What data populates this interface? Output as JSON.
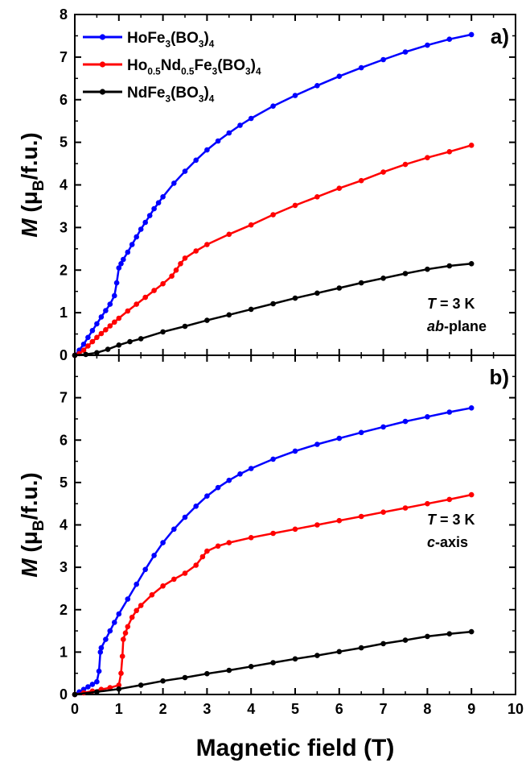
{
  "chart_data": [
    {
      "type": "scatter",
      "panel_label": "a)",
      "title": "",
      "xlabel": "Magnetic field (T)",
      "ylabel": "M (μB/f.u.)",
      "xlim": [
        0,
        10
      ],
      "ylim": [
        0,
        8
      ],
      "xticks": [
        0,
        1,
        2,
        3,
        4,
        5,
        6,
        7,
        8,
        9,
        10
      ],
      "yticks": [
        0,
        1,
        2,
        3,
        4,
        5,
        6,
        7,
        8
      ],
      "legend_position": "top-left",
      "annotation": {
        "T_label": "T",
        "T_value": " = 3 K",
        "orient_italic": "ab",
        "orient_rest": "-plane"
      },
      "series": [
        {
          "name": "HoFe3(BO3)4",
          "color": "#0000ff",
          "points": [
            [
              0,
              0
            ],
            [
              0.1,
              0.12
            ],
            [
              0.2,
              0.26
            ],
            [
              0.3,
              0.42
            ],
            [
              0.4,
              0.58
            ],
            [
              0.5,
              0.74
            ],
            [
              0.6,
              0.9
            ],
            [
              0.7,
              1.05
            ],
            [
              0.8,
              1.2
            ],
            [
              0.9,
              1.4
            ],
            [
              0.95,
              1.7
            ],
            [
              1.0,
              2.05
            ],
            [
              1.05,
              2.15
            ],
            [
              1.1,
              2.25
            ],
            [
              1.2,
              2.42
            ],
            [
              1.3,
              2.6
            ],
            [
              1.4,
              2.78
            ],
            [
              1.5,
              2.96
            ],
            [
              1.6,
              3.12
            ],
            [
              1.7,
              3.28
            ],
            [
              1.8,
              3.44
            ],
            [
              1.9,
              3.58
            ],
            [
              2.0,
              3.72
            ],
            [
              2.25,
              4.04
            ],
            [
              2.5,
              4.32
            ],
            [
              2.75,
              4.58
            ],
            [
              3.0,
              4.82
            ],
            [
              3.25,
              5.03
            ],
            [
              3.5,
              5.22
            ],
            [
              3.75,
              5.4
            ],
            [
              4.0,
              5.56
            ],
            [
              4.5,
              5.85
            ],
            [
              5.0,
              6.1
            ],
            [
              5.5,
              6.33
            ],
            [
              6.0,
              6.55
            ],
            [
              6.5,
              6.75
            ],
            [
              7.0,
              6.94
            ],
            [
              7.5,
              7.12
            ],
            [
              8.0,
              7.28
            ],
            [
              8.5,
              7.42
            ],
            [
              9.0,
              7.53
            ]
          ]
        },
        {
          "name": "Ho0.5Nd0.5Fe3(BO3)4",
          "color": "#ff0000",
          "points": [
            [
              0,
              0
            ],
            [
              0.1,
              0.04
            ],
            [
              0.2,
              0.12
            ],
            [
              0.3,
              0.22
            ],
            [
              0.4,
              0.32
            ],
            [
              0.5,
              0.42
            ],
            [
              0.6,
              0.51
            ],
            [
              0.7,
              0.6
            ],
            [
              0.8,
              0.69
            ],
            [
              0.9,
              0.78
            ],
            [
              1.0,
              0.87
            ],
            [
              1.2,
              1.04
            ],
            [
              1.4,
              1.2
            ],
            [
              1.6,
              1.36
            ],
            [
              1.8,
              1.52
            ],
            [
              2.0,
              1.68
            ],
            [
              2.2,
              1.86
            ],
            [
              2.3,
              2.0
            ],
            [
              2.4,
              2.15
            ],
            [
              2.5,
              2.28
            ],
            [
              2.75,
              2.45
            ],
            [
              3.0,
              2.6
            ],
            [
              3.5,
              2.84
            ],
            [
              4.0,
              3.06
            ],
            [
              4.5,
              3.3
            ],
            [
              5.0,
              3.52
            ],
            [
              5.5,
              3.72
            ],
            [
              6.0,
              3.92
            ],
            [
              6.5,
              4.1
            ],
            [
              7.0,
              4.3
            ],
            [
              7.5,
              4.48
            ],
            [
              8.0,
              4.64
            ],
            [
              8.5,
              4.78
            ],
            [
              9.0,
              4.93
            ]
          ]
        },
        {
          "name": "NdFe3(BO3)4",
          "color": "#000000",
          "points": [
            [
              0,
              0
            ],
            [
              0.25,
              0.02
            ],
            [
              0.5,
              0.06
            ],
            [
              0.75,
              0.14
            ],
            [
              1.0,
              0.24
            ],
            [
              1.25,
              0.32
            ],
            [
              1.5,
              0.39
            ],
            [
              2.0,
              0.55
            ],
            [
              2.5,
              0.68
            ],
            [
              3.0,
              0.82
            ],
            [
              3.5,
              0.95
            ],
            [
              4.0,
              1.08
            ],
            [
              4.5,
              1.21
            ],
            [
              5.0,
              1.34
            ],
            [
              5.5,
              1.46
            ],
            [
              6.0,
              1.58
            ],
            [
              6.5,
              1.7
            ],
            [
              7.0,
              1.81
            ],
            [
              7.5,
              1.92
            ],
            [
              8.0,
              2.02
            ],
            [
              8.5,
              2.1
            ],
            [
              9.0,
              2.15
            ]
          ]
        }
      ]
    },
    {
      "type": "scatter",
      "panel_label": "b)",
      "title": "",
      "xlabel": "Magnetic field (T)",
      "ylabel": "M (μB/f.u.)",
      "xlim": [
        0,
        10
      ],
      "ylim": [
        0,
        8
      ],
      "xticks": [
        0,
        1,
        2,
        3,
        4,
        5,
        6,
        7,
        8,
        9,
        10
      ],
      "yticks": [
        0,
        1,
        2,
        3,
        4,
        5,
        6,
        7
      ],
      "annotation": {
        "T_label": "T",
        "T_value": " = 3 K",
        "orient_italic": "c",
        "orient_rest": "-axis"
      },
      "series": [
        {
          "name": "HoFe3(BO3)4",
          "color": "#0000ff",
          "points": [
            [
              0,
              0
            ],
            [
              0.1,
              0.06
            ],
            [
              0.2,
              0.12
            ],
            [
              0.3,
              0.18
            ],
            [
              0.4,
              0.24
            ],
            [
              0.5,
              0.3
            ],
            [
              0.55,
              0.55
            ],
            [
              0.58,
              1.0
            ],
            [
              0.6,
              1.1
            ],
            [
              0.7,
              1.3
            ],
            [
              0.8,
              1.5
            ],
            [
              0.9,
              1.7
            ],
            [
              1.0,
              1.9
            ],
            [
              1.2,
              2.25
            ],
            [
              1.4,
              2.6
            ],
            [
              1.6,
              2.95
            ],
            [
              1.8,
              3.28
            ],
            [
              2.0,
              3.58
            ],
            [
              2.25,
              3.9
            ],
            [
              2.5,
              4.18
            ],
            [
              2.75,
              4.44
            ],
            [
              3.0,
              4.68
            ],
            [
              3.25,
              4.88
            ],
            [
              3.5,
              5.05
            ],
            [
              3.75,
              5.2
            ],
            [
              4.0,
              5.33
            ],
            [
              4.5,
              5.55
            ],
            [
              5.0,
              5.74
            ],
            [
              5.5,
              5.9
            ],
            [
              6.0,
              6.04
            ],
            [
              6.5,
              6.18
            ],
            [
              7.0,
              6.31
            ],
            [
              7.5,
              6.44
            ],
            [
              8.0,
              6.55
            ],
            [
              8.5,
              6.66
            ],
            [
              9.0,
              6.76
            ]
          ]
        },
        {
          "name": "Ho0.5Nd0.5Fe3(BO3)4",
          "color": "#ff0000",
          "points": [
            [
              0,
              0
            ],
            [
              0.2,
              0.04
            ],
            [
              0.4,
              0.08
            ],
            [
              0.6,
              0.12
            ],
            [
              0.8,
              0.16
            ],
            [
              1.0,
              0.22
            ],
            [
              1.05,
              0.5
            ],
            [
              1.08,
              0.9
            ],
            [
              1.1,
              1.3
            ],
            [
              1.15,
              1.45
            ],
            [
              1.2,
              1.6
            ],
            [
              1.3,
              1.82
            ],
            [
              1.4,
              1.98
            ],
            [
              1.5,
              2.1
            ],
            [
              1.75,
              2.35
            ],
            [
              2.0,
              2.56
            ],
            [
              2.25,
              2.72
            ],
            [
              2.5,
              2.86
            ],
            [
              2.75,
              3.05
            ],
            [
              2.9,
              3.25
            ],
            [
              3.0,
              3.38
            ],
            [
              3.25,
              3.5
            ],
            [
              3.5,
              3.58
            ],
            [
              4.0,
              3.7
            ],
            [
              4.5,
              3.8
            ],
            [
              5.0,
              3.9
            ],
            [
              5.5,
              4.0
            ],
            [
              6.0,
              4.1
            ],
            [
              6.5,
              4.2
            ],
            [
              7.0,
              4.3
            ],
            [
              7.5,
              4.4
            ],
            [
              8.0,
              4.5
            ],
            [
              8.5,
              4.6
            ],
            [
              9.0,
              4.71
            ]
          ]
        },
        {
          "name": "NdFe3(BO3)4",
          "color": "#000000",
          "points": [
            [
              0,
              0
            ],
            [
              0.5,
              0.06
            ],
            [
              1.0,
              0.13
            ],
            [
              1.5,
              0.22
            ],
            [
              2.0,
              0.32
            ],
            [
              2.5,
              0.4
            ],
            [
              3.0,
              0.49
            ],
            [
              3.5,
              0.57
            ],
            [
              4.0,
              0.66
            ],
            [
              4.5,
              0.75
            ],
            [
              5.0,
              0.84
            ],
            [
              5.5,
              0.92
            ],
            [
              6.0,
              1.01
            ],
            [
              6.5,
              1.1
            ],
            [
              7.0,
              1.2
            ],
            [
              7.5,
              1.28
            ],
            [
              8.0,
              1.37
            ],
            [
              8.5,
              1.43
            ],
            [
              9.0,
              1.48
            ]
          ]
        }
      ]
    }
  ]
}
